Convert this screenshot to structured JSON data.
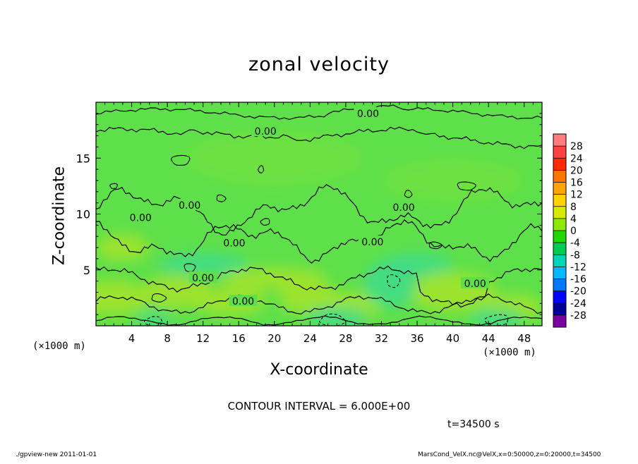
{
  "chart_data": {
    "type": "heatmap",
    "title": "zonal velocity",
    "xlabel": "X-coordinate",
    "ylabel": "Z-coordinate",
    "x_unit_left": "(×1000 m)",
    "x_unit_right": "(×1000 m)",
    "xlim": [
      0,
      50
    ],
    "ylim": [
      0,
      20
    ],
    "x_ticks": [
      4,
      8,
      12,
      16,
      20,
      24,
      28,
      32,
      36,
      40,
      44,
      48
    ],
    "y_ticks": [
      5,
      10,
      15
    ],
    "colorbar": {
      "labels": [
        28,
        24,
        20,
        16,
        12,
        8,
        4,
        0,
        -4,
        -8,
        -12,
        -16,
        -20,
        -24,
        -28
      ],
      "colors": [
        "#ff7d7d",
        "#ff4242",
        "#ff2a00",
        "#ff7300",
        "#ffa400",
        "#ffd200",
        "#d8ea00",
        "#8fe800",
        "#1ed900",
        "#00cc55",
        "#00d5b5",
        "#00b8ff",
        "#0077ff",
        "#0000ff",
        "#000099",
        "#7a00a0"
      ]
    },
    "contour_labels": [
      {
        "text": "0.00",
        "x": 30.5,
        "z": 19.0
      },
      {
        "text": "0.00",
        "x": 19.0,
        "z": 17.4
      },
      {
        "text": "0.00",
        "x": 10.5,
        "z": 10.8
      },
      {
        "text": "0.00",
        "x": 5.0,
        "z": 9.7
      },
      {
        "text": "0.00",
        "x": 34.5,
        "z": 10.6
      },
      {
        "text": "0.00",
        "x": 15.5,
        "z": 7.4
      },
      {
        "text": "0.00",
        "x": 31.0,
        "z": 7.5
      },
      {
        "text": "0.00",
        "x": 12.0,
        "z": 4.3
      },
      {
        "text": "0.00",
        "x": 42.5,
        "z": 3.8
      },
      {
        "text": "0.00",
        "x": 16.5,
        "z": 2.2
      }
    ],
    "contour_interval": "CONTOUR INTERVAL = 6.000E+00",
    "time": "t=34500 s"
  },
  "footer": {
    "left": "./gpview-new  2011-01-01",
    "right": "MarsCond_VelX.nc@VelX,x=0:50000,z=0:20000,t=34500"
  },
  "colors": {
    "field_base": "#5ee04a",
    "field_warm": "#a6e42a",
    "field_cool": "#3fdc8a"
  }
}
